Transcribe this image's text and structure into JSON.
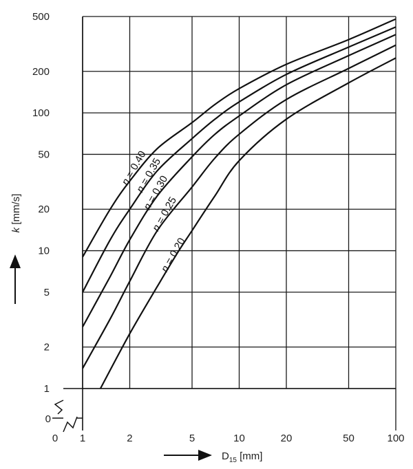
{
  "chart_data": {
    "type": "line",
    "title": "",
    "xlabel": "D15 [mm]",
    "xlabel_main": "D",
    "xlabel_sub": "15",
    "xlabel_unit": " [mm]",
    "ylabel": "k [mm/s]",
    "ylabel_var": "k",
    "ylabel_unit": " [mm/s]",
    "x_scale": "log",
    "y_scale": "log",
    "xlim": [
      1,
      100
    ],
    "ylim": [
      1,
      500
    ],
    "grid": true,
    "x_ticks": [
      1,
      2,
      5,
      10,
      20,
      50,
      100
    ],
    "x_tick_labels": [
      "1",
      "2",
      "5",
      "10",
      "20",
      "50",
      "100"
    ],
    "x_zero_label": "0",
    "y_ticks": [
      1,
      2,
      5,
      10,
      20,
      50,
      100,
      200,
      500
    ],
    "y_tick_labels": [
      "1",
      "2",
      "5",
      "10",
      "20",
      "50",
      "100",
      "200",
      "500"
    ],
    "y_zero_label": "0",
    "series": [
      {
        "name": "n = 0.40",
        "x": [
          1,
          1.5,
          2,
          3,
          5,
          7,
          10,
          20,
          50,
          100
        ],
        "y": [
          9,
          20,
          32,
          55,
          85,
          115,
          150,
          225,
          340,
          480
        ]
      },
      {
        "name": "n = 0.35",
        "x": [
          1,
          1.5,
          2,
          3,
          5,
          7,
          10,
          20,
          50,
          100
        ],
        "y": [
          5,
          12,
          20,
          38,
          65,
          90,
          120,
          190,
          300,
          420
        ]
      },
      {
        "name": "n = 0.30",
        "x": [
          1,
          1.5,
          2,
          3,
          5,
          7,
          10,
          20,
          50,
          100
        ],
        "y": [
          2.8,
          6.5,
          12,
          25,
          48,
          70,
          95,
          160,
          260,
          370
        ]
      },
      {
        "name": "n = 0.25",
        "x": [
          1,
          1.5,
          2,
          3,
          5,
          7,
          10,
          20,
          50,
          100
        ],
        "y": [
          1.4,
          3.2,
          6,
          14,
          29,
          47,
          70,
          125,
          210,
          310
        ]
      },
      {
        "name": "n = 0.20",
        "x": [
          1.3,
          2,
          3,
          4,
          5,
          7,
          10,
          20,
          50,
          100
        ],
        "y": [
          1,
          2.5,
          5.5,
          9.5,
          14,
          25,
          45,
          90,
          165,
          250
        ]
      }
    ]
  }
}
